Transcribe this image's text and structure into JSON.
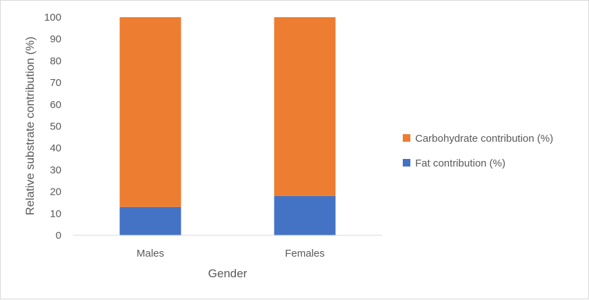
{
  "chart_data": {
    "type": "bar",
    "stacked": true,
    "categories": [
      "Males",
      "Females"
    ],
    "series": [
      {
        "name": "Fat contribution (%)",
        "values": [
          13,
          18
        ],
        "color": "#4472c4"
      },
      {
        "name": "Carbohydrate contribution (%)",
        "values": [
          87,
          82
        ],
        "color": "#ed7d31"
      }
    ],
    "xlabel": "Gender",
    "ylabel": "Relative substrate contribution (%)",
    "ylim": [
      0,
      100
    ],
    "yticks": [
      0,
      10,
      20,
      30,
      40,
      50,
      60,
      70,
      80,
      90,
      100
    ],
    "grid": false,
    "legend_position": "right",
    "legend_order": [
      1,
      0
    ]
  }
}
